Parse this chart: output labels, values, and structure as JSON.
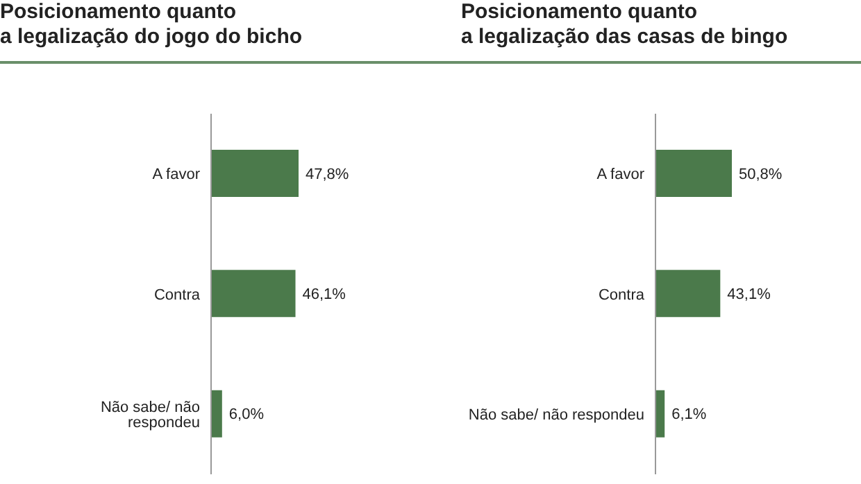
{
  "chart_data": [
    {
      "type": "bar",
      "orientation": "horizontal",
      "title": "Posicionamento quanto\na legalização do jogo do bicho",
      "categories": [
        "A favor",
        "Contra",
        "Não sabe/ não respondeu"
      ],
      "values": [
        47.8,
        46.1,
        6.0
      ],
      "value_labels": [
        "47,8%",
        "46,1%",
        "6,0%"
      ],
      "color": "#4b7a4b",
      "legend": false,
      "grid": false
    },
    {
      "type": "bar",
      "orientation": "horizontal",
      "title": "Posicionamento quanto\na legalização das casas de bingo",
      "categories": [
        "A favor",
        "Contra",
        "Não sabe/ não respondeu"
      ],
      "values": [
        50.8,
        43.1,
        6.1
      ],
      "value_labels": [
        "50,8%",
        "43,1%",
        "6,1%"
      ],
      "color": "#4b7a4b",
      "legend": false,
      "grid": false
    }
  ]
}
